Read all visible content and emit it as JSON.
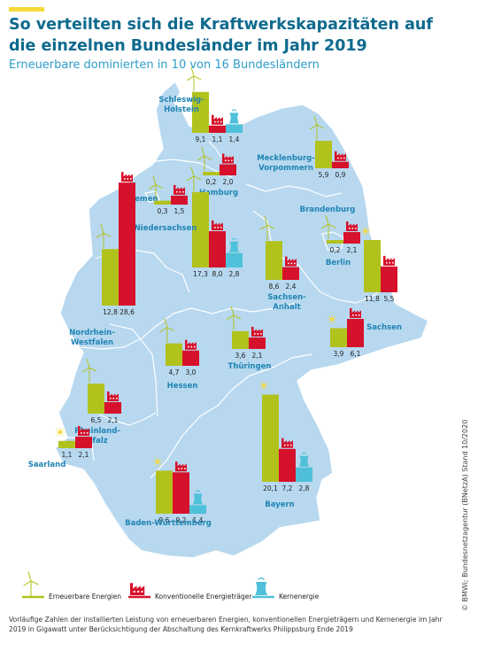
{
  "header": {
    "title_line1": "So verteilten sich die Kraftwerkskapazitäten auf",
    "title_line2": "die einzelnen Bundesländer im Jahr 2019",
    "subtitle": "Erneuerbare dominierten in 10 von 16 Bundesländern"
  },
  "colors": {
    "renewable": "#b2c21d",
    "conventional": "#d6112b",
    "nuclear": "#4fc0d9",
    "map_fill": "#b7d8ef",
    "border": "#ffffff",
    "title": "#0e6a8e",
    "state_label": "#1f84b4"
  },
  "legend": {
    "renewable": "Erneuerbare Energien",
    "conventional": "Konventionelle Energieträger",
    "nuclear": "Kernenergie"
  },
  "chart_data": {
    "type": "bar",
    "unit": "Gigawatt",
    "series_names": [
      "Erneuerbare Energien",
      "Konventionelle Energieträger",
      "Kernenergie"
    ],
    "states": [
      {
        "name": "Schleswig-Holstein",
        "label_lines": [
          "Schleswig-",
          "Holstein"
        ],
        "values": [
          "9,1",
          "1,1",
          "1,4"
        ]
      },
      {
        "name": "Mecklenburg-Vorpommern",
        "label_lines": [
          "Mecklenburg-",
          "Vorpommern"
        ],
        "values": [
          "5,9",
          "0,9"
        ]
      },
      {
        "name": "Hamburg",
        "label_lines": [
          "Hamburg"
        ],
        "values": [
          "0,2",
          "2,0"
        ]
      },
      {
        "name": "Bremen",
        "label_lines": [
          "Bremen"
        ],
        "values": [
          "0,3",
          "1,5"
        ]
      },
      {
        "name": "Niedersachsen",
        "label_lines": [
          "Niedersachsen"
        ],
        "values": [
          "17,3",
          "8,0",
          "2,8"
        ]
      },
      {
        "name": "Brandenburg",
        "label_lines": [
          "Brandenburg"
        ],
        "values": [
          "11,8",
          "5,5"
        ]
      },
      {
        "name": "Berlin",
        "label_lines": [
          "Berlin"
        ],
        "values": [
          "0,2",
          "2,1"
        ]
      },
      {
        "name": "Sachsen-Anhalt",
        "label_lines": [
          "Sachsen-",
          "Anhalt"
        ],
        "values": [
          "8,6",
          "2,4"
        ]
      },
      {
        "name": "Nordrhein-Westfalen",
        "label_lines": [
          "Nordrhein-",
          "Westfalen"
        ],
        "values": [
          "12,8",
          "28,6"
        ]
      },
      {
        "name": "Sachsen",
        "label_lines": [
          "Sachsen"
        ],
        "values": [
          "3,9",
          "6,1"
        ]
      },
      {
        "name": "Thüringen",
        "label_lines": [
          "Thüringen"
        ],
        "values": [
          "3,6",
          "2,1"
        ]
      },
      {
        "name": "Hessen",
        "label_lines": [
          "Hessen"
        ],
        "values": [
          "4,7",
          "3,0"
        ]
      },
      {
        "name": "Rheinland-Pfalz",
        "label_lines": [
          "Rheinland-",
          "Pfalz"
        ],
        "values": [
          "6,5",
          "2,1"
        ]
      },
      {
        "name": "Saarland",
        "label_lines": [
          "Saarland"
        ],
        "values": [
          "1,1",
          "2,1"
        ]
      },
      {
        "name": "Bayern",
        "label_lines": [
          "Bayern"
        ],
        "values": [
          "20,1",
          "7,2",
          "2,8"
        ]
      },
      {
        "name": "Baden-Württemberg",
        "label_lines": [
          "Baden-Württemberg"
        ],
        "values": [
          "9,6",
          "9,2",
          "1,4"
        ]
      }
    ]
  },
  "footnote": "Vorläufige Zahlen der installierten Leistung von erneuerbaren Energien, konventionellen Energieträgern und Kernenergie im Jahr 2019 in Gigawatt unter Berücksichtigung der Abschaltung des Kernkraftwerks Philippsburg Ende 2019",
  "source": "© BMWi; Bundesnetzagentur (BNetzA) Stand 10/2020"
}
